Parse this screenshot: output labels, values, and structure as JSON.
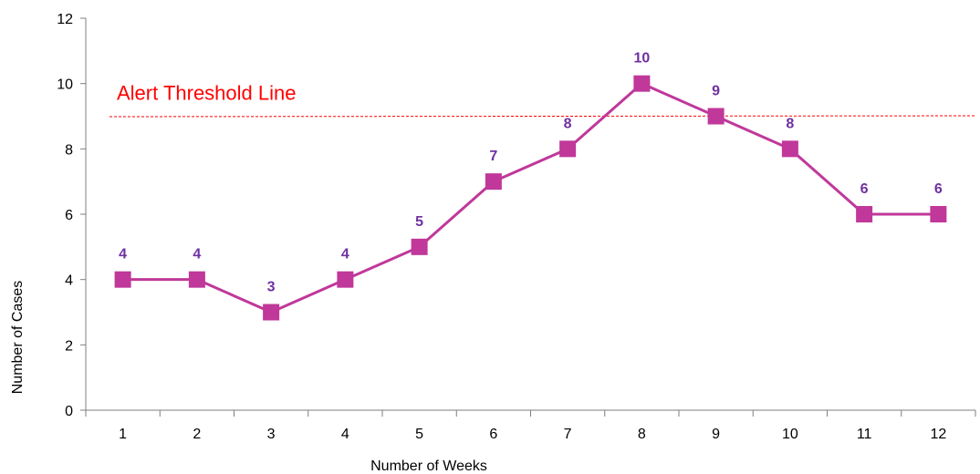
{
  "chart_data": {
    "type": "line",
    "title": "",
    "xlabel": "Number of Weeks",
    "ylabel": "Number of Cases",
    "categories": [
      "1",
      "2",
      "3",
      "4",
      "5",
      "6",
      "7",
      "8",
      "9",
      "10",
      "11",
      "12"
    ],
    "series": [
      {
        "values": [
          4,
          4,
          3,
          4,
          5,
          7,
          8,
          10,
          9,
          8,
          6,
          6
        ]
      }
    ],
    "ylim": [
      0,
      12
    ],
    "yticks": [
      "0",
      "2",
      "4",
      "6",
      "8",
      "10",
      "12"
    ],
    "grid": false,
    "data_labels": true,
    "threshold": {
      "label": "Alert Threshold Line",
      "value": 9,
      "color": "#ff0000"
    },
    "colors": {
      "series": "#c0389a",
      "labels": "#7030a0",
      "axis": "#7f7f7f"
    }
  }
}
